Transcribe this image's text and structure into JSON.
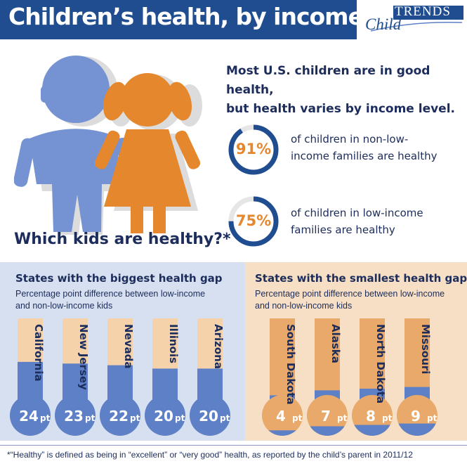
{
  "header": {
    "title": "Children’s health, by income level",
    "logo_child": "Child",
    "logo_trends": "TRENDS"
  },
  "intro": {
    "question": "Which kids are healthy?*",
    "headline_line1": "Most U.S. children are in good health,",
    "headline_line2": "but health varies by income level."
  },
  "stats": [
    {
      "value": 91,
      "label_text": "91%",
      "line1": "of children in non-low-",
      "line2": "income families are healthy"
    },
    {
      "value": 75,
      "label_text": "75%",
      "line1": "of children in low-income",
      "line2": "families are healthy"
    }
  ],
  "colors": {
    "navy": "#1f4d8f",
    "blue": "#5d80c6",
    "orange": "#e5872c",
    "light_orange": "#f5d2aa",
    "ring_track": "#e6e6e6"
  },
  "chart_data": [
    {
      "type": "bar",
      "title": "States with the biggest health gap",
      "subtitle": "Percentage point difference between low-income and non-low-income kids",
      "subtitle_line1": "Percentage point difference between low-income",
      "subtitle_line2": "and non-low-income kids",
      "categories": [
        "California",
        "New Jersey",
        "Nevada",
        "Illinois",
        "Arizona"
      ],
      "values": [
        24,
        23,
        22,
        20,
        20
      ],
      "value_labels": [
        "24",
        "23",
        "22",
        "20",
        "20"
      ],
      "unit": "pt"
    },
    {
      "type": "bar",
      "title": "States with the smallest health gap",
      "subtitle": "Percentage point difference between low-income and non-low-income kids",
      "subtitle_line1": "Percentage point difference between low-income",
      "subtitle_line2": "and non-low-income kids",
      "categories": [
        "South Dakota",
        "Alaska",
        "North Dakota",
        "Missouri"
      ],
      "values": [
        4,
        7,
        8,
        9
      ],
      "value_labels": [
        "4",
        "7",
        "8",
        "9"
      ],
      "unit": "pt"
    }
  ],
  "footnote": "*“Healthy” is defined as being in “excellent” or “very good” health, as reported by the child’s parent in 2011/12"
}
